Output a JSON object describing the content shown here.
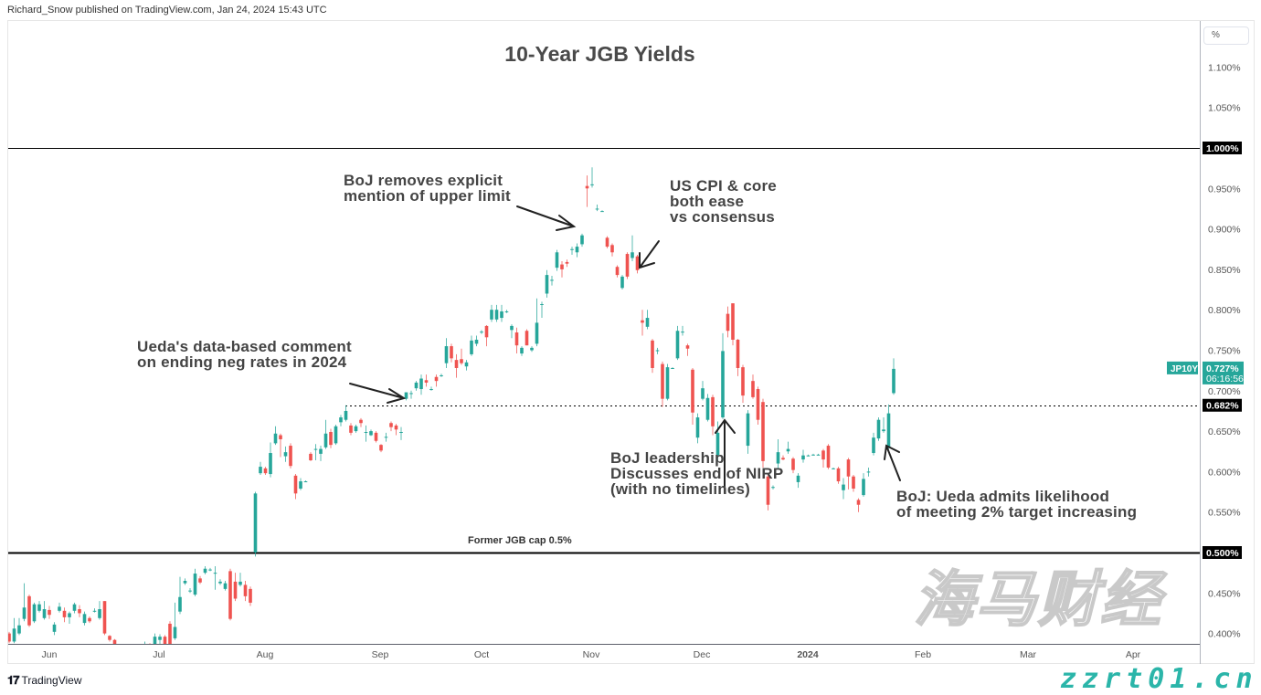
{
  "header": {
    "publisher": "Richard_Snow published on TradingView.com, Jan 24, 2024 15:43 UTC"
  },
  "footer": {
    "brand": "TradingView",
    "logo_glyph": "17"
  },
  "watermark": {
    "cn": "海马财经",
    "url": "zzrt01.cn"
  },
  "colors": {
    "up": "#26a69a",
    "down": "#ef5350",
    "line": "#000000",
    "label_bg": "#000000",
    "last_price_bg": "#26a69a"
  },
  "axis_unit_button": "%",
  "chart_data": {
    "type": "candlestick",
    "title": "10-Year JGB Yields",
    "symbol": "JP10Y",
    "last_price": "0.727%",
    "countdown": "06:16:56",
    "ylim": [
      0.387,
      1.158
    ],
    "y_unit": "%",
    "y_ticks": [
      "1.100%",
      "1.050%",
      "0.950%",
      "0.900%",
      "0.850%",
      "0.800%",
      "0.750%",
      "0.700%",
      "0.650%",
      "0.600%",
      "0.550%",
      "0.450%",
      "0.400%"
    ],
    "y_tick_values": [
      1.1,
      1.05,
      0.95,
      0.9,
      0.85,
      0.8,
      0.75,
      0.7,
      0.65,
      0.6,
      0.55,
      0.45,
      0.4
    ],
    "x_ticks": [
      "Jun",
      "Jul",
      "Aug",
      "Sep",
      "Oct",
      "Nov",
      "Dec",
      "2024",
      "Feb",
      "Mar",
      "Apr"
    ],
    "horizontal_lines": [
      {
        "value": 1.0,
        "label": "1.000%",
        "style": "solid"
      },
      {
        "value": 0.5,
        "label": "0.500%",
        "style": "solid",
        "text": "Former JGB cap 0.5%"
      },
      {
        "value": 0.682,
        "label": "0.682%",
        "style": "dotted"
      }
    ],
    "ohlc": [
      [
        0.4,
        0.402,
        0.388,
        0.39
      ],
      [
        0.39,
        0.419,
        0.388,
        0.406
      ],
      [
        0.4,
        0.419,
        0.398,
        0.41
      ],
      [
        0.418,
        0.462,
        0.415,
        0.432
      ],
      [
        0.446,
        0.448,
        0.408,
        0.41
      ],
      [
        0.415,
        0.438,
        0.413,
        0.436
      ],
      [
        0.428,
        0.44,
        0.426,
        0.436
      ],
      [
        0.419,
        0.44,
        0.417,
        0.43
      ],
      [
        0.429,
        0.434,
        0.418,
        0.423
      ],
      [
        0.402,
        0.414,
        0.398,
        0.411
      ],
      [
        0.428,
        0.438,
        0.426,
        0.433
      ],
      [
        0.428,
        0.432,
        0.414,
        0.42
      ],
      [
        0.42,
        0.427,
        0.412,
        0.425
      ],
      [
        0.428,
        0.438,
        0.425,
        0.436
      ],
      [
        0.43,
        0.435,
        0.42,
        0.425
      ],
      [
        0.413,
        0.427,
        0.41,
        0.424
      ],
      [
        0.419,
        0.421,
        0.413,
        0.415
      ],
      [
        0.428,
        0.431,
        0.426,
        0.428
      ],
      [
        0.419,
        0.44,
        0.417,
        0.43
      ],
      [
        0.44,
        0.44,
        0.398,
        0.4
      ],
      [
        0.397,
        0.398,
        0.39,
        0.392
      ],
      [
        0.392,
        0.393,
        0.386,
        0.387
      ],
      [
        0.385,
        0.387,
        0.378,
        0.38
      ],
      [
        0.38,
        0.384,
        0.375,
        0.378
      ],
      [
        0.378,
        0.383,
        0.374,
        0.381
      ],
      [
        0.381,
        0.385,
        0.376,
        0.379
      ],
      [
        0.379,
        0.384,
        0.376,
        0.382
      ],
      [
        0.384,
        0.39,
        0.38,
        0.385
      ],
      [
        0.385,
        0.388,
        0.379,
        0.383
      ],
      [
        0.387,
        0.4,
        0.385,
        0.396
      ],
      [
        0.392,
        0.399,
        0.386,
        0.396
      ],
      [
        0.396,
        0.398,
        0.385,
        0.387
      ],
      [
        0.412,
        0.415,
        0.385,
        0.387
      ],
      [
        0.394,
        0.438,
        0.392,
        0.408
      ],
      [
        0.427,
        0.47,
        0.424,
        0.445
      ],
      [
        0.462,
        0.468,
        0.46,
        0.465
      ],
      [
        0.453,
        0.456,
        0.45,
        0.453
      ],
      [
        0.448,
        0.48,
        0.446,
        0.474
      ],
      [
        0.468,
        0.471,
        0.461,
        0.463
      ],
      [
        0.475,
        0.483,
        0.473,
        0.48
      ],
      [
        0.479,
        0.481,
        0.477,
        0.479
      ],
      [
        0.475,
        0.483,
        0.454,
        0.475
      ],
      [
        0.462,
        0.467,
        0.46,
        0.464
      ],
      [
        0.455,
        0.465,
        0.453,
        0.462
      ],
      [
        0.477,
        0.48,
        0.416,
        0.418
      ],
      [
        0.464,
        0.475,
        0.44,
        0.443
      ],
      [
        0.46,
        0.475,
        0.458,
        0.464
      ],
      [
        0.46,
        0.465,
        0.44,
        0.446
      ],
      [
        0.455,
        0.458,
        0.434,
        0.438
      ],
      [
        0.5,
        0.575,
        0.495,
        0.573
      ],
      [
        0.598,
        0.612,
        0.596,
        0.606
      ],
      [
        0.604,
        0.606,
        0.596,
        0.598
      ],
      [
        0.597,
        0.636,
        0.593,
        0.623
      ],
      [
        0.635,
        0.656,
        0.633,
        0.647
      ],
      [
        0.645,
        0.647,
        0.618,
        0.64
      ],
      [
        0.619,
        0.631,
        0.612,
        0.624
      ],
      [
        0.632,
        0.635,
        0.604,
        0.607
      ],
      [
        0.595,
        0.597,
        0.566,
        0.573
      ],
      [
        0.579,
        0.592,
        0.577,
        0.588
      ],
      [
        0.588,
        0.589,
        0.587,
        0.588
      ],
      [
        0.622,
        0.624,
        0.613,
        0.614
      ],
      [
        0.628,
        0.634,
        0.614,
        0.628
      ],
      [
        0.622,
        0.632,
        0.613,
        0.628
      ],
      [
        0.63,
        0.664,
        0.628,
        0.647
      ],
      [
        0.649,
        0.653,
        0.629,
        0.633
      ],
      [
        0.635,
        0.658,
        0.633,
        0.656
      ],
      [
        0.661,
        0.67,
        0.656,
        0.667
      ],
      [
        0.664,
        0.682,
        0.662,
        0.675
      ],
      [
        0.657,
        0.66,
        0.645,
        0.648
      ],
      [
        0.65,
        0.658,
        0.648,
        0.656
      ],
      [
        0.664,
        0.666,
        0.655,
        0.66
      ],
      [
        0.649,
        0.657,
        0.637,
        0.649
      ],
      [
        0.645,
        0.652,
        0.644,
        0.65
      ],
      [
        0.648,
        0.65,
        0.636,
        0.638
      ],
      [
        0.633,
        0.634,
        0.624,
        0.626
      ],
      [
        0.643,
        0.648,
        0.637,
        0.643
      ],
      [
        0.66,
        0.662,
        0.65,
        0.655
      ],
      [
        0.657,
        0.659,
        0.645,
        0.652
      ],
      [
        0.649,
        0.655,
        0.639,
        0.649
      ],
      [
        0.69,
        0.698,
        0.688,
        0.698
      ],
      [
        0.697,
        0.7,
        0.69,
        0.697
      ],
      [
        0.703,
        0.712,
        0.7,
        0.71
      ],
      [
        0.702,
        0.72,
        0.695,
        0.715
      ],
      [
        0.713,
        0.72,
        0.705,
        0.71
      ],
      [
        0.702,
        0.705,
        0.7,
        0.702
      ],
      [
        0.717,
        0.72,
        0.705,
        0.712
      ],
      [
        0.719,
        0.721,
        0.717,
        0.719
      ],
      [
        0.734,
        0.765,
        0.728,
        0.755
      ],
      [
        0.755,
        0.758,
        0.735,
        0.74
      ],
      [
        0.738,
        0.745,
        0.716,
        0.728
      ],
      [
        0.739,
        0.752,
        0.732,
        0.734
      ],
      [
        0.73,
        0.738,
        0.725,
        0.735
      ],
      [
        0.745,
        0.768,
        0.743,
        0.762
      ],
      [
        0.758,
        0.768,
        0.755,
        0.763
      ],
      [
        0.773,
        0.775,
        0.77,
        0.773
      ],
      [
        0.78,
        0.781,
        0.755,
        0.766
      ],
      [
        0.788,
        0.806,
        0.785,
        0.8
      ],
      [
        0.788,
        0.806,
        0.785,
        0.8
      ],
      [
        0.79,
        0.806,
        0.785,
        0.798
      ],
      [
        0.798,
        0.8,
        0.796,
        0.798
      ],
      [
        0.775,
        0.782,
        0.765,
        0.78
      ],
      [
        0.772,
        0.778,
        0.746,
        0.756
      ],
      [
        0.746,
        0.755,
        0.743,
        0.753
      ],
      [
        0.774,
        0.776,
        0.756,
        0.756
      ],
      [
        0.75,
        0.755,
        0.748,
        0.753
      ],
      [
        0.758,
        0.814,
        0.755,
        0.784
      ],
      [
        0.806,
        0.81,
        0.79,
        0.807
      ],
      [
        0.82,
        0.849,
        0.815,
        0.843
      ],
      [
        0.837,
        0.842,
        0.83,
        0.837
      ],
      [
        0.852,
        0.874,
        0.848,
        0.871
      ],
      [
        0.856,
        0.86,
        0.84,
        0.85
      ],
      [
        0.859,
        0.862,
        0.853,
        0.857
      ],
      [
        0.875,
        0.878,
        0.868,
        0.875
      ],
      [
        0.871,
        0.882,
        0.865,
        0.878
      ],
      [
        0.881,
        0.894,
        0.878,
        0.892
      ],
      [
        0.953,
        0.966,
        0.927,
        0.95
      ],
      [
        0.954,
        0.976,
        0.951,
        0.955
      ],
      [
        0.925,
        0.93,
        0.922,
        0.925
      ],
      [
        0.922,
        0.923,
        0.921,
        0.922
      ],
      [
        0.889,
        0.891,
        0.876,
        0.878
      ],
      [
        0.88,
        0.882,
        0.866,
        0.871
      ],
      [
        0.853,
        0.855,
        0.84,
        0.843
      ],
      [
        0.827,
        0.843,
        0.825,
        0.841
      ],
      [
        0.869,
        0.871,
        0.838,
        0.841
      ],
      [
        0.864,
        0.892,
        0.86,
        0.871
      ],
      [
        0.866,
        0.868,
        0.845,
        0.849
      ],
      [
        0.787,
        0.8,
        0.768,
        0.784
      ],
      [
        0.779,
        0.8,
        0.776,
        0.79
      ],
      [
        0.762,
        0.764,
        0.722,
        0.728
      ],
      [
        0.75,
        0.753,
        0.745,
        0.75
      ],
      [
        0.733,
        0.736,
        0.68,
        0.69
      ],
      [
        0.69,
        0.733,
        0.688,
        0.729
      ],
      [
        0.728,
        0.729,
        0.727,
        0.728
      ],
      [
        0.74,
        0.78,
        0.738,
        0.774
      ],
      [
        0.773,
        0.78,
        0.768,
        0.773
      ],
      [
        0.756,
        0.758,
        0.743,
        0.752
      ],
      [
        0.726,
        0.728,
        0.658,
        0.673
      ],
      [
        0.642,
        0.672,
        0.635,
        0.667
      ],
      [
        0.69,
        0.712,
        0.688,
        0.703
      ],
      [
        0.664,
        0.696,
        0.662,
        0.691
      ],
      [
        0.692,
        0.695,
        0.645,
        0.656
      ],
      [
        0.62,
        0.662,
        0.612,
        0.648
      ],
      [
        0.667,
        0.771,
        0.665,
        0.749
      ],
      [
        0.795,
        0.804,
        0.766,
        0.774
      ],
      [
        0.808,
        0.808,
        0.756,
        0.763
      ],
      [
        0.763,
        0.764,
        0.718,
        0.728
      ],
      [
        0.729,
        0.732,
        0.685,
        0.694
      ],
      [
        0.632,
        0.676,
        0.622,
        0.672
      ],
      [
        0.712,
        0.72,
        0.69,
        0.692
      ],
      [
        0.702,
        0.705,
        0.658,
        0.664
      ],
      [
        0.686,
        0.69,
        0.605,
        0.613
      ],
      [
        0.594,
        0.596,
        0.552,
        0.559
      ],
      [
        0.581,
        0.583,
        0.578,
        0.581
      ],
      [
        0.61,
        0.64,
        0.604,
        0.624
      ],
      [
        0.617,
        0.62,
        0.614,
        0.615
      ],
      [
        0.625,
        0.637,
        0.622,
        0.628
      ],
      [
        0.616,
        0.618,
        0.598,
        0.602
      ],
      [
        0.587,
        0.598,
        0.58,
        0.595
      ],
      [
        0.615,
        0.627,
        0.611,
        0.62
      ],
      [
        0.62,
        0.621,
        0.619,
        0.62
      ],
      [
        0.621,
        0.622,
        0.62,
        0.621
      ],
      [
        0.621,
        0.622,
        0.62,
        0.621
      ],
      [
        0.626,
        0.628,
        0.605,
        0.615
      ],
      [
        0.632,
        0.634,
        0.603,
        0.605
      ],
      [
        0.604,
        0.605,
        0.603,
        0.604
      ],
      [
        0.604,
        0.606,
        0.585,
        0.588
      ],
      [
        0.577,
        0.592,
        0.566,
        0.584
      ],
      [
        0.615,
        0.617,
        0.578,
        0.594
      ],
      [
        0.594,
        0.596,
        0.575,
        0.579
      ],
      [
        0.565,
        0.567,
        0.55,
        0.559
      ],
      [
        0.571,
        0.598,
        0.569,
        0.591
      ],
      [
        0.6,
        0.605,
        0.594,
        0.6
      ],
      [
        0.623,
        0.648,
        0.62,
        0.642
      ],
      [
        0.641,
        0.667,
        0.638,
        0.664
      ],
      [
        0.65,
        0.667,
        0.648,
        0.652
      ],
      [
        0.63,
        0.683,
        0.628,
        0.672
      ],
      [
        0.697,
        0.74,
        0.695,
        0.727
      ]
    ],
    "annotations": [
      "BoJ removes explicit\nmention of upper limit",
      "US CPI & core\nboth ease\nvs consensus",
      "Ueda's data-based comment\non ending neg rates in 2024",
      "BoJ leadership\nDiscusses end of NIRP\n(with no timelines)",
      "BoJ: Ueda admits likelihood\nof meeting 2% target increasing"
    ]
  }
}
